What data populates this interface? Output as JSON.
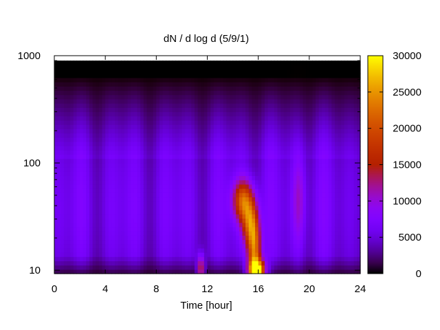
{
  "chart_data": {
    "type": "heatmap",
    "title": "dN / d log d (5/9/1)",
    "xlabel": "Time [hour]",
    "ylabel": "",
    "xlim": [
      0,
      24
    ],
    "ylim": [
      9.3,
      1000
    ],
    "y_scale": "log",
    "x_ticks": [
      0,
      4,
      8,
      12,
      16,
      20,
      24
    ],
    "x_tick_labels": [
      "0",
      "4",
      "8",
      "12",
      "16",
      "20",
      "24"
    ],
    "y_ticks": [
      10,
      100,
      1000
    ],
    "y_tick_labels": [
      "10",
      "100",
      "1000"
    ],
    "colorbar": {
      "range": [
        0,
        30000
      ],
      "ticks": [
        0,
        5000,
        10000,
        15000,
        20000,
        25000,
        30000
      ],
      "tick_labels": [
        "0",
        "5000",
        "10000",
        "15000",
        "20000",
        "25000",
        "30000"
      ],
      "palette": "gnuplot-pm3d"
    },
    "grid": false,
    "data_extent": {
      "time": [
        0,
        24
      ],
      "size_min": 9.3,
      "size_max": 900
    },
    "background_level": 8000,
    "features": [
      {
        "label": "main burst upper",
        "time": 14.8,
        "size": 45,
        "value": 19000,
        "time_width": 0.55,
        "log_width": 0.13
      },
      {
        "label": "main burst tail",
        "time": 15.7,
        "size": 16,
        "value": 22000,
        "time_width": 0.35,
        "log_width": 0.22
      },
      {
        "label": "main burst bottom",
        "time": 15.9,
        "size": 10,
        "value": 28000,
        "time_width": 0.45,
        "log_width": 0.07
      },
      {
        "label": "mid ridge",
        "time": 15.3,
        "size": 28,
        "value": 17000,
        "time_width": 0.4,
        "log_width": 0.15
      },
      {
        "label": "early spike",
        "time": 11.5,
        "size": 10.5,
        "value": 15000,
        "time_width": 0.2,
        "log_width": 0.09
      },
      {
        "label": "evening band",
        "time": 19.2,
        "size": 45,
        "value": 9000,
        "time_width": 0.35,
        "log_width": 0.3
      }
    ]
  }
}
